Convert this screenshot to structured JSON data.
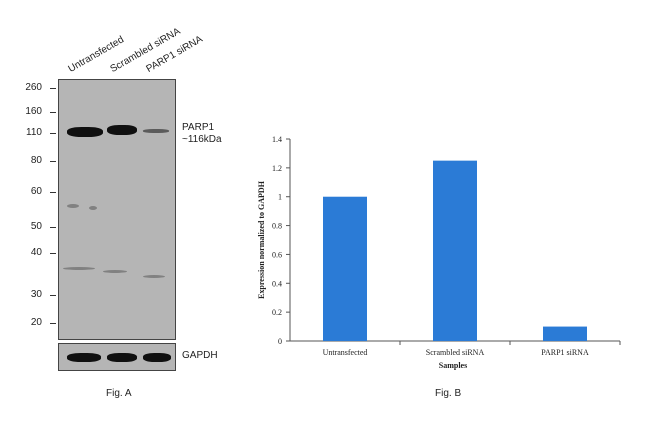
{
  "figure_a": {
    "lanes": [
      "Untransfected",
      "Scrambled siRNA",
      "PARP1 siRNA"
    ],
    "mw_markers": [
      "260",
      "160",
      "110",
      "80",
      "60",
      "50",
      "40",
      "30",
      "20"
    ],
    "target_label_line1": "PARP1",
    "target_label_line2": "~116kDa",
    "loading_control_label": "GAPDH",
    "caption": "Fig. A"
  },
  "figure_b": {
    "caption": "Fig. B"
  },
  "chart_data": {
    "type": "bar",
    "categories": [
      "Untransfected",
      "Scrambled siRNA",
      "PARP1 siRNA"
    ],
    "values": [
      1.0,
      1.25,
      0.1
    ],
    "title": "",
    "xlabel": "Samples",
    "ylabel": "Expression normalized to GAPDH",
    "ylim": [
      0,
      1.4
    ],
    "yticks": [
      "0",
      "0.2",
      "0.4",
      "0.6",
      "0.8",
      "1",
      "1.2",
      "1.4"
    ],
    "bar_color": "#2b7bd6",
    "grid": false,
    "legend": "none"
  }
}
